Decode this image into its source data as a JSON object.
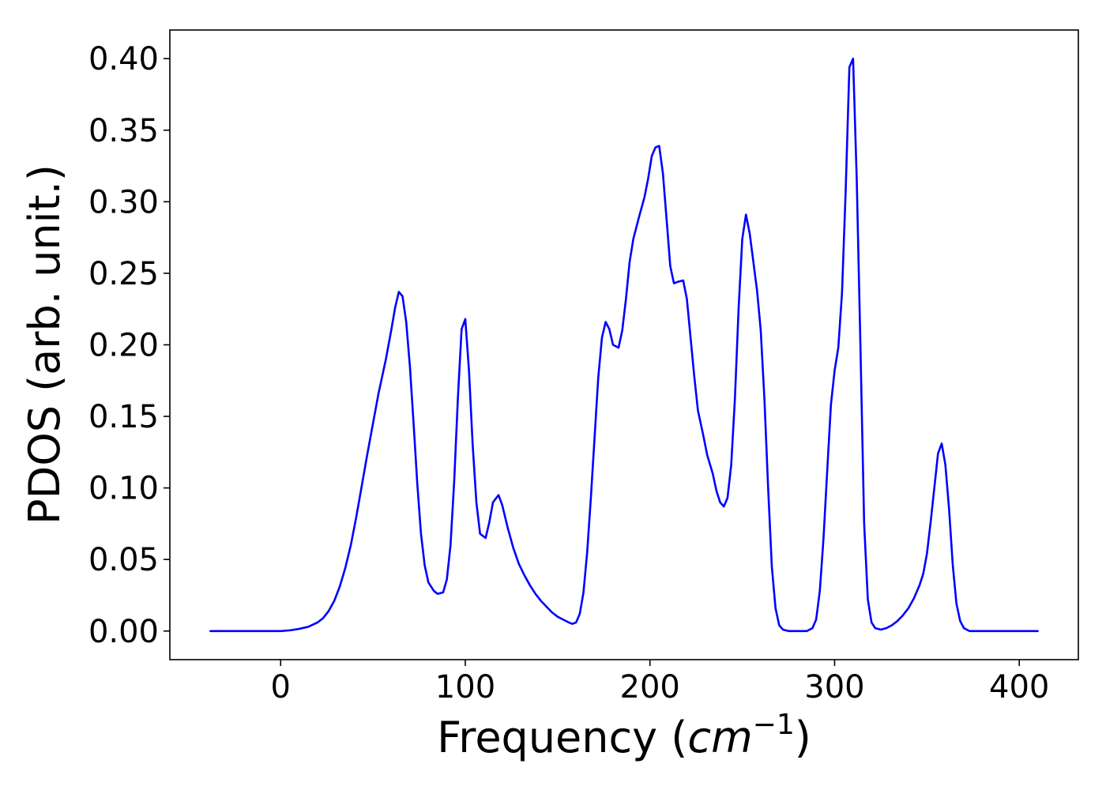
{
  "chart_data": {
    "type": "line",
    "title": "",
    "xlabel": "Frequency (cm⁻¹)",
    "xlabel_parts": {
      "prefix": "Frequency (",
      "unit": "cm",
      "exponent": "−1",
      "suffix": ")"
    },
    "ylabel": "PDOS (arb. unit.)",
    "xlim": [
      -60,
      432
    ],
    "ylim": [
      -0.02,
      0.42
    ],
    "x_ticks": [
      0,
      100,
      200,
      300,
      400
    ],
    "x_tick_labels": [
      "0",
      "100",
      "200",
      "300",
      "400"
    ],
    "y_ticks": [
      0.0,
      0.05,
      0.1,
      0.15,
      0.2,
      0.25,
      0.3,
      0.35,
      0.4
    ],
    "y_tick_labels": [
      "0.00",
      "0.05",
      "0.10",
      "0.15",
      "0.20",
      "0.25",
      "0.30",
      "0.35",
      "0.40"
    ],
    "grid": false,
    "legend": "none",
    "series": [
      {
        "color": "#0000ff",
        "points": [
          [
            -38,
            0.0
          ],
          [
            0,
            0.0
          ],
          [
            5,
            0.0005
          ],
          [
            10,
            0.0015
          ],
          [
            15,
            0.003
          ],
          [
            20,
            0.006
          ],
          [
            23,
            0.009
          ],
          [
            26,
            0.014
          ],
          [
            29,
            0.021
          ],
          [
            32,
            0.031
          ],
          [
            35,
            0.044
          ],
          [
            38,
            0.06
          ],
          [
            41,
            0.08
          ],
          [
            44,
            0.102
          ],
          [
            47,
            0.124
          ],
          [
            50,
            0.145
          ],
          [
            53,
            0.166
          ],
          [
            57,
            0.19
          ],
          [
            60,
            0.211
          ],
          [
            62,
            0.226
          ],
          [
            64,
            0.237
          ],
          [
            66,
            0.234
          ],
          [
            68,
            0.216
          ],
          [
            70,
            0.185
          ],
          [
            72,
            0.145
          ],
          [
            74,
            0.103
          ],
          [
            76,
            0.068
          ],
          [
            78,
            0.046
          ],
          [
            80,
            0.034
          ],
          [
            83,
            0.028
          ],
          [
            85,
            0.026
          ],
          [
            88,
            0.027
          ],
          [
            90,
            0.036
          ],
          [
            92,
            0.06
          ],
          [
            94,
            0.105
          ],
          [
            96,
            0.163
          ],
          [
            98,
            0.211
          ],
          [
            100,
            0.218
          ],
          [
            102,
            0.182
          ],
          [
            104,
            0.13
          ],
          [
            106,
            0.09
          ],
          [
            108,
            0.068
          ],
          [
            111,
            0.065
          ],
          [
            113,
            0.076
          ],
          [
            115,
            0.09
          ],
          [
            118,
            0.095
          ],
          [
            120,
            0.088
          ],
          [
            123,
            0.072
          ],
          [
            126,
            0.058
          ],
          [
            129,
            0.047
          ],
          [
            132,
            0.039
          ],
          [
            135,
            0.032
          ],
          [
            138,
            0.026
          ],
          [
            141,
            0.021
          ],
          [
            144,
            0.017
          ],
          [
            147,
            0.013
          ],
          [
            150,
            0.01
          ],
          [
            153,
            0.008
          ],
          [
            156,
            0.006
          ],
          [
            158,
            0.005
          ],
          [
            160,
            0.006
          ],
          [
            162,
            0.012
          ],
          [
            164,
            0.027
          ],
          [
            166,
            0.055
          ],
          [
            168,
            0.093
          ],
          [
            170,
            0.135
          ],
          [
            172,
            0.177
          ],
          [
            174,
            0.205
          ],
          [
            176,
            0.216
          ],
          [
            178,
            0.211
          ],
          [
            180,
            0.2
          ],
          [
            183,
            0.198
          ],
          [
            185,
            0.21
          ],
          [
            187,
            0.232
          ],
          [
            189,
            0.258
          ],
          [
            191,
            0.274
          ],
          [
            194,
            0.289
          ],
          [
            197,
            0.303
          ],
          [
            199,
            0.316
          ],
          [
            201,
            0.332
          ],
          [
            203,
            0.338
          ],
          [
            205,
            0.339
          ],
          [
            207,
            0.32
          ],
          [
            209,
            0.288
          ],
          [
            211,
            0.255
          ],
          [
            213,
            0.243
          ],
          [
            215,
            0.244
          ],
          [
            218,
            0.245
          ],
          [
            220,
            0.232
          ],
          [
            222,
            0.205
          ],
          [
            224,
            0.178
          ],
          [
            226,
            0.154
          ],
          [
            229,
            0.136
          ],
          [
            231,
            0.123
          ],
          [
            234,
            0.11
          ],
          [
            236,
            0.098
          ],
          [
            238,
            0.09
          ],
          [
            240,
            0.087
          ],
          [
            242,
            0.093
          ],
          [
            244,
            0.116
          ],
          [
            246,
            0.162
          ],
          [
            248,
            0.225
          ],
          [
            250,
            0.274
          ],
          [
            252,
            0.291
          ],
          [
            254,
            0.278
          ],
          [
            256,
            0.258
          ],
          [
            258,
            0.238
          ],
          [
            260,
            0.21
          ],
          [
            262,
            0.162
          ],
          [
            264,
            0.1
          ],
          [
            266,
            0.045
          ],
          [
            268,
            0.016
          ],
          [
            270,
            0.004
          ],
          [
            272,
            0.001
          ],
          [
            275,
            0.0
          ],
          [
            285,
            0.0
          ],
          [
            288,
            0.002
          ],
          [
            290,
            0.008
          ],
          [
            292,
            0.028
          ],
          [
            294,
            0.065
          ],
          [
            296,
            0.112
          ],
          [
            298,
            0.158
          ],
          [
            300,
            0.182
          ],
          [
            302,
            0.198
          ],
          [
            304,
            0.236
          ],
          [
            306,
            0.308
          ],
          [
            308,
            0.394
          ],
          [
            310,
            0.4
          ],
          [
            312,
            0.315
          ],
          [
            314,
            0.198
          ],
          [
            316,
            0.075
          ],
          [
            318,
            0.022
          ],
          [
            320,
            0.006
          ],
          [
            322,
            0.002
          ],
          [
            325,
            0.001
          ],
          [
            328,
            0.002
          ],
          [
            331,
            0.004
          ],
          [
            334,
            0.007
          ],
          [
            337,
            0.011
          ],
          [
            340,
            0.016
          ],
          [
            343,
            0.023
          ],
          [
            346,
            0.032
          ],
          [
            348,
            0.04
          ],
          [
            350,
            0.054
          ],
          [
            352,
            0.076
          ],
          [
            354,
            0.1
          ],
          [
            356,
            0.124
          ],
          [
            358,
            0.131
          ],
          [
            360,
            0.116
          ],
          [
            362,
            0.085
          ],
          [
            364,
            0.046
          ],
          [
            366,
            0.019
          ],
          [
            368,
            0.007
          ],
          [
            370,
            0.002
          ],
          [
            373,
            0.0
          ],
          [
            410,
            0.0
          ]
        ]
      }
    ]
  }
}
